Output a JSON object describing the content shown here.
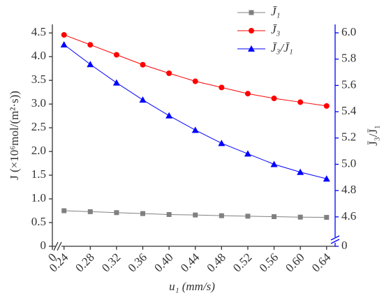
{
  "chart_data": {
    "type": "line",
    "x_label": "u₁ (mm/s)",
    "y_label": "J (×10⁶mol/(m²·s))",
    "y2_label": "J̄₃/J̄₁",
    "x": [
      0.24,
      0.28,
      0.32,
      0.36,
      0.4,
      0.44,
      0.48,
      0.52,
      0.56,
      0.6,
      0.64
    ],
    "series": [
      {
        "name": "J̄₁",
        "color": "#808080",
        "marker": "square",
        "values": [
          0.75,
          0.73,
          0.71,
          0.69,
          0.67,
          0.66,
          0.645,
          0.635,
          0.625,
          0.615,
          0.61
        ]
      },
      {
        "name": "J̄₃",
        "color": "#ff0000",
        "marker": "circle",
        "values": [
          4.46,
          4.25,
          4.04,
          3.83,
          3.65,
          3.48,
          3.35,
          3.22,
          3.12,
          3.04,
          2.96
        ]
      },
      {
        "name": "J̄₃/J̄₁",
        "color": "#0000ff",
        "marker": "triangle",
        "axis": "y2",
        "values": [
          5.91,
          5.76,
          5.62,
          5.49,
          5.37,
          5.26,
          5.16,
          5.08,
          5.0,
          4.94,
          4.89
        ]
      }
    ],
    "xlim": [
      0,
      0.653
    ],
    "xbreak": [
      0.005,
      0.235
    ],
    "xticks": [
      0,
      0.24,
      0.28,
      0.32,
      0.36,
      {
        "value": 0.4,
        "label": "0.40"
      },
      0.44,
      0.48,
      0.52,
      0.56,
      {
        "value": 0.6,
        "label": "0.60"
      },
      0.64
    ],
    "ylim": [
      0,
      4.68
    ],
    "yticks": [
      0,
      0.5,
      {
        "value": 1,
        "label": "1.0"
      },
      1.5,
      {
        "value": 2,
        "label": "2.0"
      },
      2.5,
      {
        "value": 3,
        "label": "3.0"
      },
      3.5,
      {
        "value": 4,
        "label": "4.0"
      },
      4.5
    ],
    "y2lim": [
      0,
      6.064
    ],
    "y2break": [
      0.05,
      4.44
    ],
    "y2ticks": [
      0,
      4.6,
      4.8,
      {
        "value": 5,
        "label": "5.0"
      },
      5.2,
      5.4,
      5.6,
      5.8,
      {
        "value": 6,
        "label": "6.0"
      }
    ],
    "y2_color": "#0000ff",
    "legend": "top"
  }
}
